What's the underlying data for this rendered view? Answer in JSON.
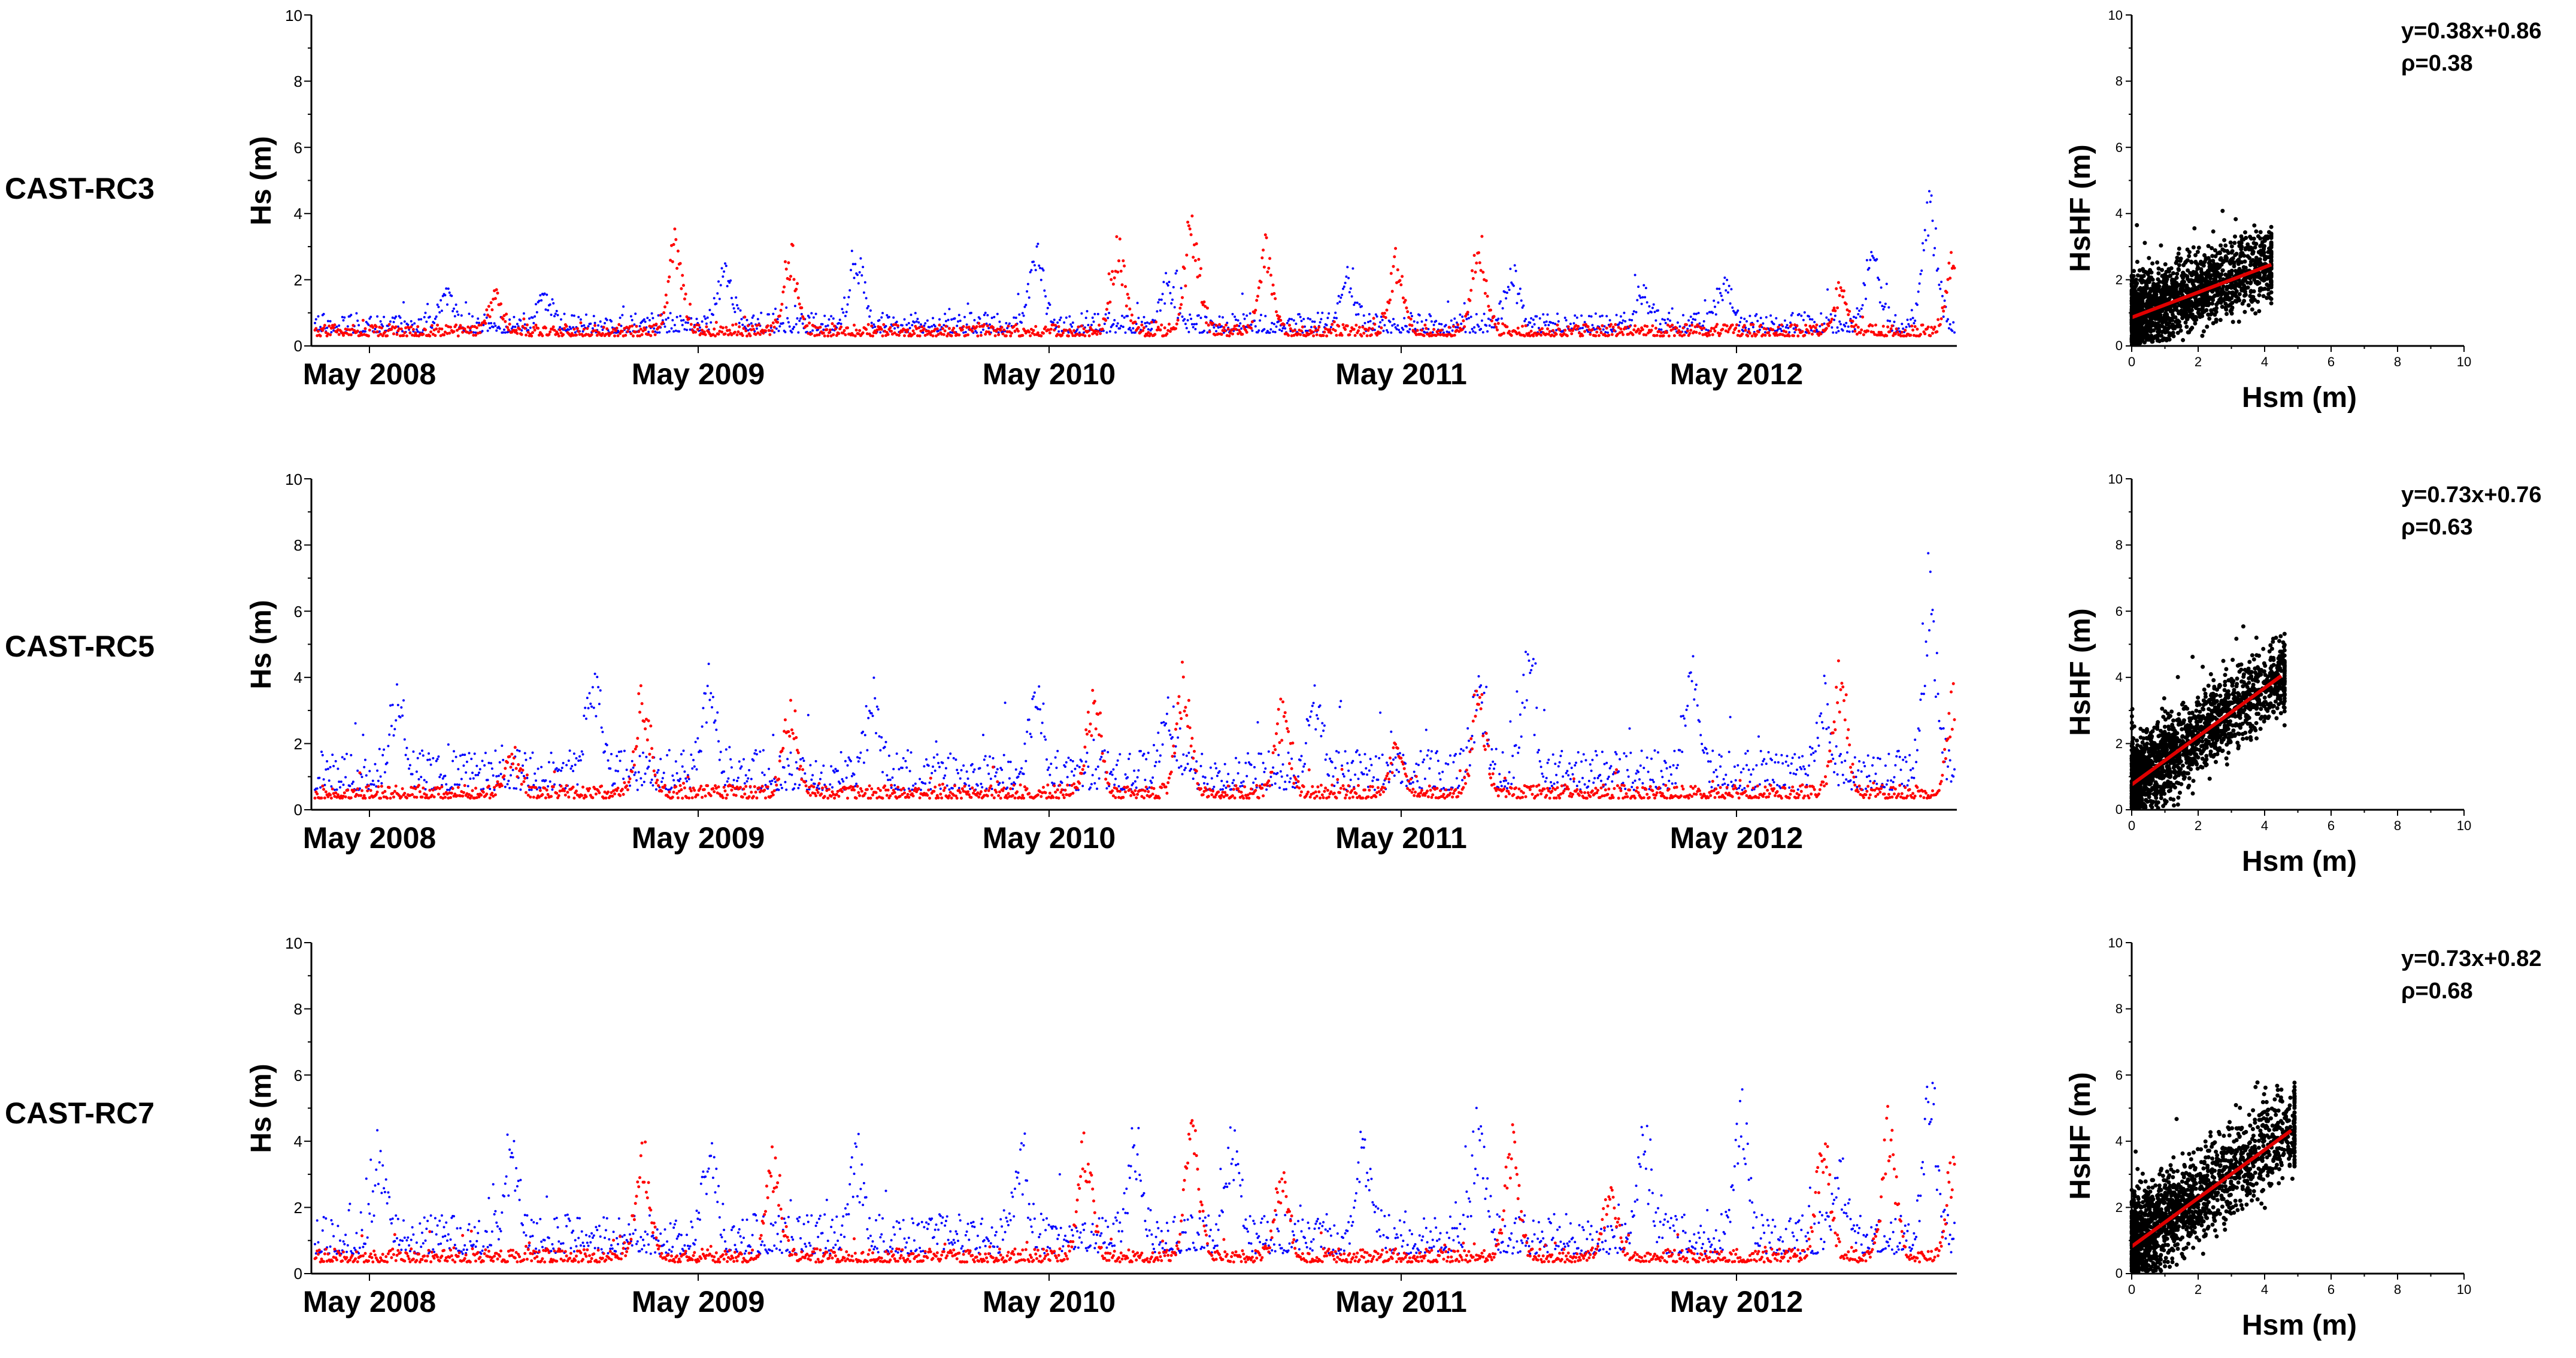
{
  "colors": {
    "series_a": "#0000ff",
    "series_b": "#ff0000",
    "scatter": "#000000",
    "fit": "#e00000"
  },
  "chart_data": [
    {
      "type": "scatter",
      "row_label": "CAST-RC3",
      "ylabel": "Hs (m)",
      "ylim": [
        0,
        10
      ],
      "yticks": [
        "0",
        "2",
        "4",
        "6",
        "8",
        "10"
      ],
      "x_tick_labels": [
        "May 2008",
        "May 2009",
        "May 2010",
        "May 2011",
        "May 2012"
      ],
      "series": [
        {
          "name": "blue",
          "color": "#0000ff",
          "baseline": 0.4,
          "noise": 0.6,
          "storms": [
            [
              0.08,
              1.7
            ],
            [
              0.14,
              1.6
            ],
            [
              0.25,
              2.4
            ],
            [
              0.33,
              3.2
            ],
            [
              0.44,
              3.0
            ],
            [
              0.52,
              2.0
            ],
            [
              0.63,
              2.2
            ],
            [
              0.73,
              2.3
            ],
            [
              0.81,
              1.6
            ],
            [
              0.86,
              2.2
            ],
            [
              0.95,
              3.0
            ],
            [
              0.985,
              4.6
            ]
          ]
        },
        {
          "name": "red",
          "color": "#ff0000",
          "baseline": 0.3,
          "noise": 0.35,
          "storms": [
            [
              0.11,
              1.6
            ],
            [
              0.22,
              3.5
            ],
            [
              0.29,
              3.0
            ],
            [
              0.49,
              3.5
            ],
            [
              0.535,
              4.2
            ],
            [
              0.58,
              3.2
            ],
            [
              0.66,
              2.8
            ],
            [
              0.71,
              3.5
            ],
            [
              0.93,
              1.8
            ],
            [
              1.0,
              3.4
            ]
          ]
        }
      ],
      "scatter": {
        "xlabel": "Hsm (m)",
        "ylabel": "HsHF (m)",
        "xlim": [
          0,
          10
        ],
        "ylim": [
          0,
          10
        ],
        "ticks": [
          "0",
          "2",
          "4",
          "6",
          "8",
          "10"
        ],
        "equation": "y=0.38x+0.86",
        "rho": "ρ=0.38",
        "slope": 0.38,
        "intercept": 0.86,
        "fit_range": [
          0,
          4.2
        ],
        "cloud_max_x": 4.2,
        "spread": 0.9
      }
    },
    {
      "type": "scatter",
      "row_label": "CAST-RC5",
      "ylabel": "Hs (m)",
      "ylim": [
        0,
        10
      ],
      "yticks": [
        "0",
        "2",
        "4",
        "6",
        "8",
        "10"
      ],
      "x_tick_labels": [
        "May 2008",
        "May 2009",
        "May 2010",
        "May 2011",
        "May 2012"
      ],
      "series": [
        {
          "name": "blue",
          "color": "#0000ff",
          "baseline": 0.6,
          "noise": 1.2,
          "storms": [
            [
              0.05,
              3.2
            ],
            [
              0.17,
              4.1
            ],
            [
              0.24,
              3.9
            ],
            [
              0.34,
              3.3
            ],
            [
              0.44,
              3.5
            ],
            [
              0.52,
              3.0
            ],
            [
              0.61,
              3.3
            ],
            [
              0.71,
              3.7
            ],
            [
              0.74,
              4.5
            ],
            [
              0.84,
              4.5
            ],
            [
              0.92,
              3.0
            ],
            [
              0.985,
              6.5
            ]
          ]
        },
        {
          "name": "red",
          "color": "#ff0000",
          "baseline": 0.35,
          "noise": 0.4,
          "storms": [
            [
              0.12,
              1.8
            ],
            [
              0.2,
              3.9
            ],
            [
              0.29,
              3.4
            ],
            [
              0.475,
              3.9
            ],
            [
              0.53,
              4.6
            ],
            [
              0.59,
              3.4
            ],
            [
              0.71,
              3.8
            ],
            [
              0.66,
              2.0
            ],
            [
              0.93,
              4.6
            ],
            [
              1.0,
              4.0
            ]
          ]
        }
      ],
      "scatter": {
        "xlabel": "Hsm (m)",
        "ylabel": "HsHF (m)",
        "xlim": [
          0,
          10
        ],
        "ylim": [
          0,
          10
        ],
        "ticks": [
          "0",
          "2",
          "4",
          "6",
          "8",
          "10"
        ],
        "equation": "y=0.73x+0.76",
        "rho": "ρ=0.63",
        "slope": 0.73,
        "intercept": 0.76,
        "fit_range": [
          0,
          4.5
        ],
        "cloud_max_x": 4.6,
        "spread": 1.0
      }
    },
    {
      "type": "scatter",
      "row_label": "CAST-RC7",
      "ylabel": "Hs (m)",
      "ylim": [
        0,
        10
      ],
      "yticks": [
        "0",
        "2",
        "4",
        "6",
        "8",
        "10"
      ],
      "x_tick_labels": [
        "May 2008",
        "May 2009",
        "May 2010",
        "May 2011",
        "May 2012"
      ],
      "series": [
        {
          "name": "blue",
          "color": "#0000ff",
          "baseline": 0.6,
          "noise": 1.2,
          "storms": [
            [
              0.04,
              3.6
            ],
            [
              0.12,
              3.8
            ],
            [
              0.24,
              3.8
            ],
            [
              0.33,
              3.4
            ],
            [
              0.43,
              3.5
            ],
            [
              0.5,
              3.8
            ],
            [
              0.56,
              3.9
            ],
            [
              0.64,
              3.9
            ],
            [
              0.71,
              4.2
            ],
            [
              0.81,
              4.0
            ],
            [
              0.87,
              4.7
            ],
            [
              0.93,
              2.9
            ],
            [
              0.985,
              5.9
            ]
          ]
        },
        {
          "name": "red",
          "color": "#ff0000",
          "baseline": 0.35,
          "noise": 0.4,
          "storms": [
            [
              0.2,
              4.0
            ],
            [
              0.28,
              3.9
            ],
            [
              0.47,
              4.3
            ],
            [
              0.535,
              5.1
            ],
            [
              0.59,
              3.3
            ],
            [
              0.73,
              4.5
            ],
            [
              0.79,
              2.8
            ],
            [
              0.92,
              4.5
            ],
            [
              0.96,
              5.0
            ],
            [
              1.0,
              4.0
            ]
          ]
        }
      ],
      "scatter": {
        "xlabel": "Hsm (m)",
        "ylabel": "HsHF (m)",
        "xlim": [
          0,
          10
        ],
        "ylim": [
          0,
          10
        ],
        "ticks": [
          "0",
          "2",
          "4",
          "6",
          "8",
          "10"
        ],
        "equation": "y=0.73x+0.82",
        "rho": "ρ=0.68",
        "slope": 0.73,
        "intercept": 0.82,
        "fit_range": [
          0,
          4.8
        ],
        "cloud_max_x": 4.9,
        "spread": 1.1
      }
    }
  ]
}
